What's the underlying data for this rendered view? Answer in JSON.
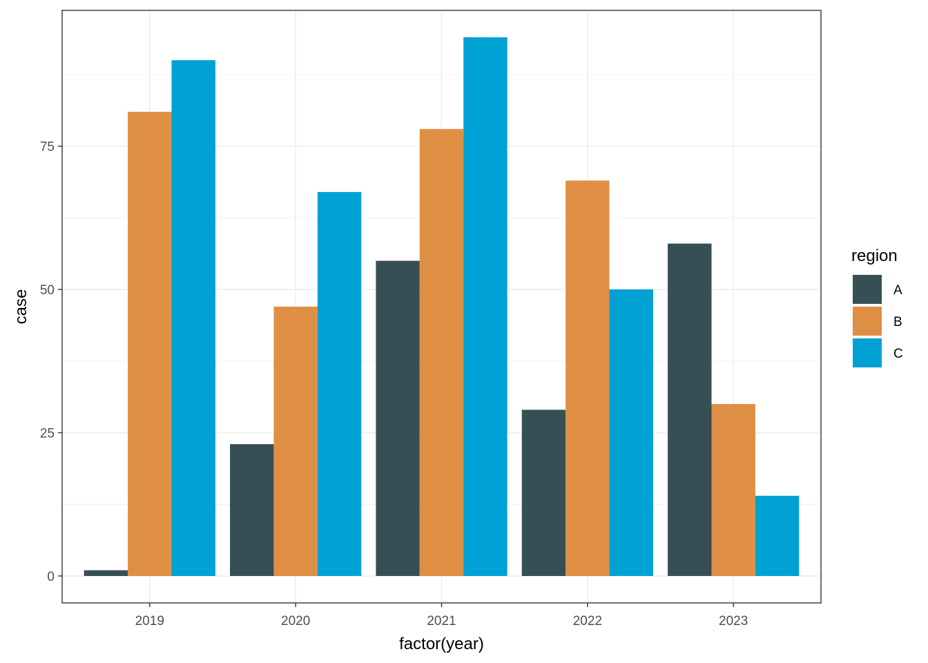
{
  "chart_data": {
    "type": "bar",
    "xlabel": "factor(year)",
    "ylabel": "case",
    "categories": [
      "2019",
      "2020",
      "2021",
      "2022",
      "2023"
    ],
    "series": [
      {
        "name": "A",
        "color": "#374E55",
        "values": [
          1,
          23,
          55,
          29,
          58
        ]
      },
      {
        "name": "B",
        "color": "#DF8F44",
        "values": [
          81,
          47,
          78,
          69,
          30
        ]
      },
      {
        "name": "C",
        "color": "#00A1D5",
        "values": [
          90,
          67,
          94,
          50,
          14
        ]
      }
    ],
    "yticks": [
      0,
      25,
      50,
      75
    ],
    "ylim": [
      -4.7,
      98.7
    ],
    "grid": true,
    "legend": {
      "title": "region",
      "position": "right"
    }
  }
}
